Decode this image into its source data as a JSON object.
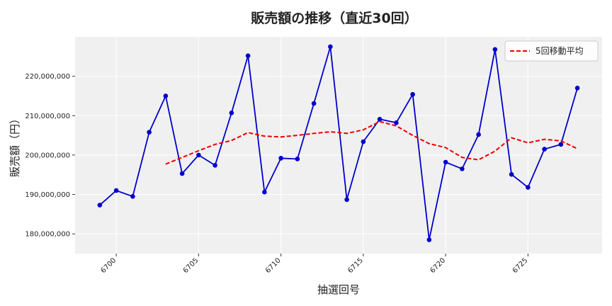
{
  "chart_data": {
    "type": "line",
    "title": "販売額の推移（直近30回）",
    "xlabel": "抽選回号",
    "ylabel": "販売額（円）",
    "xlim": [
      6697.5,
      6729.5
    ],
    "ylim": [
      175000000,
      230000000
    ],
    "xticks": [
      6700,
      6705,
      6710,
      6715,
      6720,
      6725
    ],
    "yticks": [
      180000000,
      190000000,
      200000000,
      210000000,
      220000000
    ],
    "ytick_labels": [
      "180,000,000",
      "190,000,000",
      "200,000,000",
      "210,000,000",
      "220,000,000"
    ],
    "grid": true,
    "legend_position": "top-right",
    "x": [
      6699,
      6700,
      6701,
      6702,
      6703,
      6704,
      6705,
      6706,
      6707,
      6708,
      6709,
      6710,
      6711,
      6712,
      6713,
      6714,
      6715,
      6716,
      6717,
      6718,
      6719,
      6720,
      6721,
      6722,
      6723,
      6724,
      6725,
      6726,
      6727,
      6728
    ],
    "series": [
      {
        "values": [
          187300000,
          191000000,
          189500000,
          205800000,
          215000000,
          195300000,
          200000000,
          197400000,
          210700000,
          225200000,
          190600000,
          199200000,
          199000000,
          213100000,
          227500000,
          188700000,
          203400000,
          209100000,
          208200000,
          215400000,
          178500000,
          198200000,
          196500000,
          205200000,
          226800000,
          195100000,
          191800000,
          201500000,
          202700000,
          217000000
        ],
        "color": "#0000cc",
        "style": "solid-markers"
      },
      {
        "name": "5回移動平均",
        "values": [
          null,
          null,
          null,
          null,
          197700000,
          199400000,
          201100000,
          202700000,
          203700000,
          205700000,
          204800000,
          204600000,
          205000000,
          205500000,
          205900000,
          205500000,
          206400000,
          208500000,
          207400000,
          205000000,
          202900000,
          201900000,
          199400000,
          198800000,
          201000000,
          204400000,
          203100000,
          204000000,
          203600000,
          201600000
        ],
        "color": "#ee0000",
        "style": "dashed"
      }
    ]
  }
}
